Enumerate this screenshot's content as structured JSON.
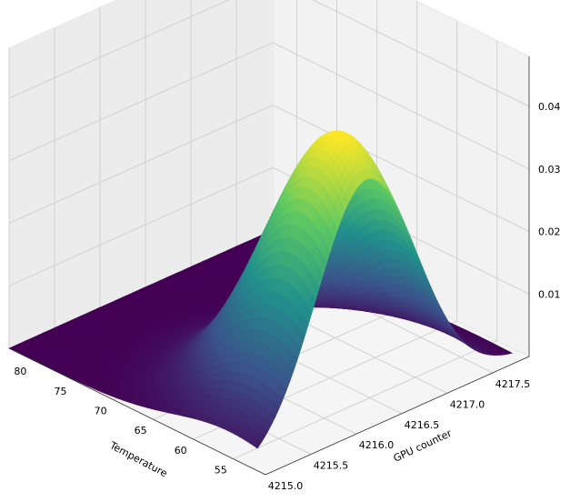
{
  "chart_data": {
    "type": "surface3d",
    "title": "",
    "xlabel": "Temperature",
    "ylabel": "GPU counter",
    "zlabel": "",
    "x_ticks": [
      55,
      60,
      65,
      70,
      75,
      80
    ],
    "y_ticks": [
      "4215.0",
      "4215.5",
      "4216.0",
      "4216.5",
      "4217.0",
      "4217.5"
    ],
    "z_ticks": [
      "0.01",
      "0.02",
      "0.03",
      "0.04"
    ],
    "xlim": [
      51,
      83
    ],
    "ylim": [
      4215.0,
      4217.9
    ],
    "zlim": [
      0,
      0.048
    ],
    "surface": {
      "description": "bivariate gaussian density",
      "peak": {
        "x": 55.5,
        "y": 4216.2,
        "z": 0.044
      },
      "sigma_x": 7.0,
      "sigma_y": 0.55
    },
    "colormap": [
      "#440154",
      "#3b528b",
      "#21918c",
      "#5ec962",
      "#fde725"
    ],
    "pane_color": "#f2f2f2",
    "grid_color": "#d0d0d0",
    "grid": true
  }
}
